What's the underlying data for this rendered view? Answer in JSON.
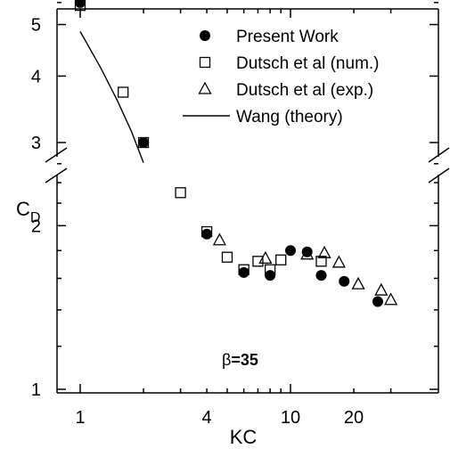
{
  "chart_data": {
    "type": "scatter",
    "title": "",
    "xlabel": "KC",
    "ylabel": "C",
    "ylabel_sub": "D",
    "x_scale": "log",
    "y_scale": "log (broken axis)",
    "xlim": [
      0.9,
      38
    ],
    "ylim_lower": [
      1,
      2.75
    ],
    "ylim_upper": [
      2.55,
      5.9
    ],
    "x_tick_labels": [
      "1",
      "4",
      "10",
      "20"
    ],
    "x_tick_values": [
      1,
      4,
      10,
      20
    ],
    "y_tick_labels": [
      "5",
      "4",
      "3",
      "2",
      "1"
    ],
    "y_tick_values": [
      5,
      4,
      3,
      2,
      1
    ],
    "grid": false,
    "legend_position": "top-right",
    "annotation": {
      "greek": "β",
      "text": "=35"
    },
    "series": [
      {
        "name": "Present Work",
        "marker": "filled-circle",
        "x": [
          1,
          2,
          4,
          6,
          8,
          10,
          12,
          14,
          18,
          26
        ],
        "y": [
          5.5,
          3,
          1.93,
          1.64,
          1.62,
          1.8,
          1.79,
          1.62,
          1.58,
          1.45
        ]
      },
      {
        "name": "Dutsch et al (num.)",
        "marker": "open-square",
        "x": [
          1,
          1.6,
          2,
          3,
          4,
          5,
          6,
          7,
          8,
          9,
          14
        ],
        "y": [
          5.43,
          3.73,
          3.0,
          2.3,
          1.95,
          1.75,
          1.66,
          1.72,
          1.66,
          1.73,
          1.72
        ]
      },
      {
        "name": "Dutsch et al (exp.)",
        "marker": "open-triangle",
        "x": [
          4.6,
          7.6,
          12,
          14.5,
          17,
          21,
          27,
          30
        ],
        "y": [
          1.88,
          1.74,
          1.77,
          1.78,
          1.71,
          1.56,
          1.52,
          1.46
        ]
      },
      {
        "name": "Wang (theory)",
        "marker": "line",
        "x": [
          1,
          1.25,
          1.5,
          1.75,
          2
        ],
        "y": [
          4.85,
          4.15,
          3.6,
          3.15,
          2.75
        ]
      }
    ]
  }
}
